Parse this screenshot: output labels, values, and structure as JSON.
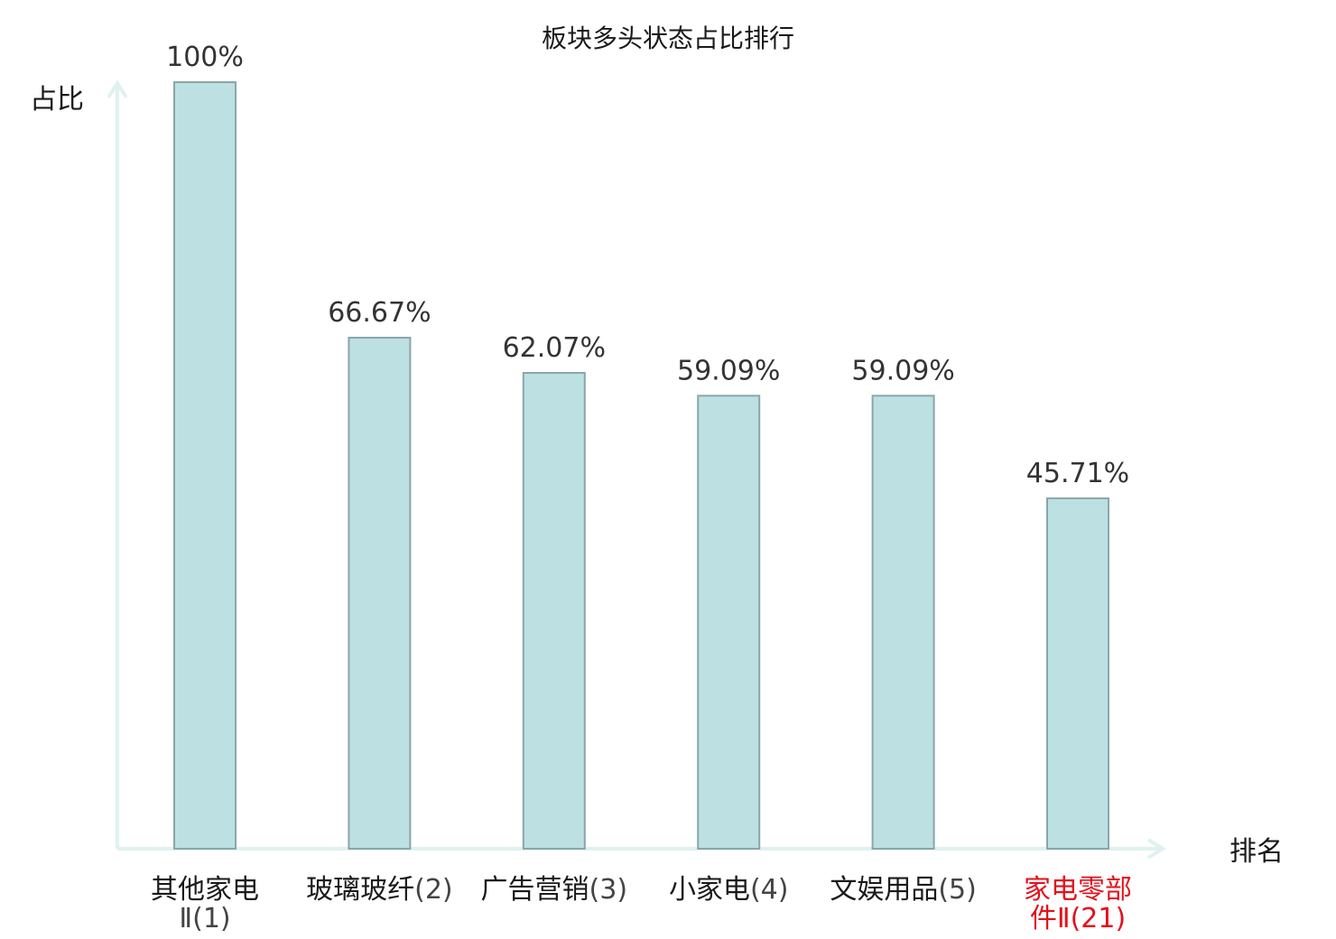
{
  "chart_data": {
    "type": "bar",
    "title": "板块多头状态占比排行",
    "ylabel": "占比",
    "xlabel": "排名",
    "ylim": [
      0,
      100
    ],
    "grid": false,
    "categories": [
      {
        "name": "其他家电Ⅱ",
        "rank": "(1)",
        "line1": "其他家电",
        "line2": "Ⅱ(1)",
        "highlight": false
      },
      {
        "name": "玻璃玻纤",
        "rank": "(2)",
        "line1": "玻璃玻纤(2)",
        "line2": "",
        "highlight": false
      },
      {
        "name": "广告营销",
        "rank": "(3)",
        "line1": "广告营销(3)",
        "line2": "",
        "highlight": false
      },
      {
        "name": "小家电",
        "rank": "(4)",
        "line1": "小家电(4)",
        "line2": "",
        "highlight": false
      },
      {
        "name": "文娱用品",
        "rank": "(5)",
        "line1": "文娱用品(5)",
        "line2": "",
        "highlight": false
      },
      {
        "name": "家电零部件Ⅱ",
        "rank": "(21)",
        "line1": "家电零部",
        "line2": "件Ⅱ(21)",
        "highlight": true
      }
    ],
    "values": [
      100,
      66.67,
      62.07,
      59.09,
      59.09,
      45.71
    ],
    "value_labels": [
      "100%",
      "66.67%",
      "62.07%",
      "59.09%",
      "59.09%",
      "45.71%"
    ],
    "colors": {
      "bar_fill": "#bde0e2",
      "bar_stroke": "#8aa6aa",
      "axis": "#dff2ef",
      "highlight_text": "#e3111b",
      "text": "#1a1a1a"
    }
  }
}
